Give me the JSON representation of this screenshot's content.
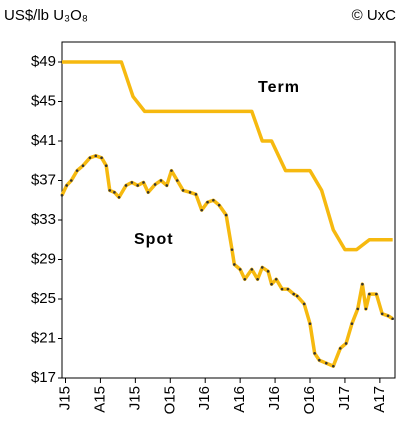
{
  "chart_data": {
    "type": "line",
    "unit_label": "US$/lb U₃O₈",
    "source": "© UxC",
    "xlim": [
      -0.3,
      28.3
    ],
    "xticks": [
      {
        "value": 0,
        "label": "J15"
      },
      {
        "value": 3,
        "label": "A15"
      },
      {
        "value": 6,
        "label": "J15"
      },
      {
        "value": 9,
        "label": "O15"
      },
      {
        "value": 12,
        "label": "J16"
      },
      {
        "value": 15,
        "label": "A16"
      },
      {
        "value": 18,
        "label": "J16"
      },
      {
        "value": 21,
        "label": "O16"
      },
      {
        "value": 24,
        "label": "J17"
      },
      {
        "value": 27,
        "label": "A17"
      }
    ],
    "ylim": [
      17,
      49
    ],
    "yticks": [
      {
        "value": 17,
        "label": "$17"
      },
      {
        "value": 21,
        "label": "$21"
      },
      {
        "value": 25,
        "label": "$25"
      },
      {
        "value": 29,
        "label": "$29"
      },
      {
        "value": 33,
        "label": "$33"
      },
      {
        "value": 37,
        "label": "$37"
      },
      {
        "value": 41,
        "label": "$41"
      },
      {
        "value": 45,
        "label": "$45"
      },
      {
        "value": 49,
        "label": "$49"
      }
    ],
    "series": [
      {
        "name": "Term",
        "color": "#f6b90f",
        "markers": false,
        "x": [
          -0.3,
          4.8,
          5.8,
          6.8,
          16.0,
          16.9,
          17.7,
          18.9,
          21.0,
          22.0,
          23.0,
          24.0,
          25.0,
          26.1,
          28.1
        ],
        "values": [
          49,
          49,
          45.5,
          44,
          44,
          41,
          41,
          38,
          38,
          36,
          32,
          30,
          30,
          31,
          31
        ]
      },
      {
        "name": "Spot",
        "color": "#f6b90f",
        "markers": true,
        "x": [
          -0.3,
          0.1,
          0.5,
          1.0,
          1.5,
          2.1,
          2.6,
          3.1,
          3.5,
          3.8,
          4.2,
          4.6,
          5.2,
          5.7,
          6.2,
          6.7,
          7.1,
          7.7,
          8.2,
          8.7,
          9.1,
          9.6,
          10.1,
          10.7,
          11.2,
          11.7,
          12.2,
          12.7,
          13.2,
          13.8,
          14.3,
          14.5,
          15.0,
          15.4,
          16.0,
          16.5,
          16.9,
          17.4,
          17.7,
          18.1,
          18.6,
          19.1,
          19.6,
          19.9,
          20.5,
          21.0,
          21.4,
          21.8,
          22.4,
          23.0,
          23.6,
          24.1,
          24.6,
          25.1,
          25.5,
          25.8,
          26.1,
          26.7,
          27.2,
          27.7,
          28.1
        ],
        "values": [
          35.5,
          36.5,
          37,
          38,
          38.5,
          39.3,
          39.5,
          39.3,
          38.5,
          36,
          35.8,
          35.3,
          36.5,
          36.8,
          36.5,
          36.8,
          35.8,
          36.6,
          37,
          36.5,
          38,
          37,
          36,
          35.8,
          35.6,
          34,
          34.8,
          35,
          34.5,
          33.5,
          30,
          28.5,
          28,
          27,
          28,
          27,
          28.2,
          27.8,
          26.5,
          27,
          26,
          26,
          25.5,
          25.3,
          24.5,
          22.5,
          19.5,
          18.8,
          18.5,
          18.2,
          20,
          20.5,
          22.5,
          24,
          26.5,
          24,
          25.5,
          25.5,
          23.5,
          23.3,
          23
        ]
      }
    ]
  }
}
